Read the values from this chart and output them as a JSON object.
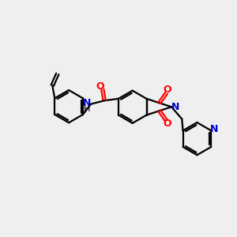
{
  "bg_color": "#efefef",
  "bond_color": "#000000",
  "N_color": "#0000cc",
  "O_color": "#ff0000",
  "lw": 1.6,
  "figsize": [
    3.0,
    3.0
  ],
  "dpi": 100,
  "xlim": [
    0,
    10
  ],
  "ylim": [
    0,
    10
  ]
}
